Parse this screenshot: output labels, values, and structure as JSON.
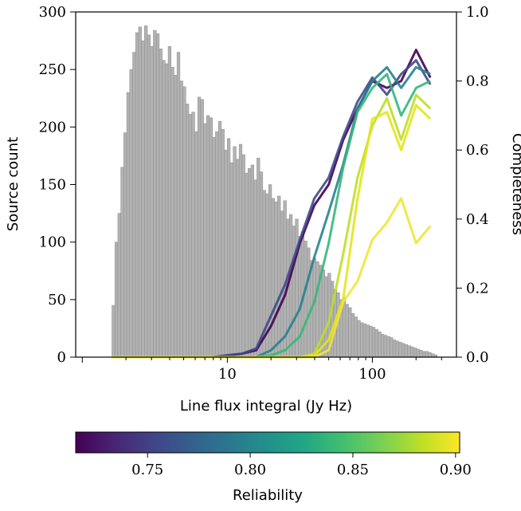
{
  "chart_data": {
    "type": "bar",
    "xlabel": "Line flux integral (Jy Hz)",
    "ylabel": "Source count",
    "y2label": "Completeness",
    "xscale": "log",
    "xlim": [
      0.9,
      380
    ],
    "ylim": [
      0,
      300
    ],
    "y2lim": [
      0,
      1.0
    ],
    "x_ticks": [
      10,
      100
    ],
    "x_tick_labels": [
      "10",
      "100"
    ],
    "y_ticks": [
      0,
      50,
      100,
      150,
      200,
      250,
      300
    ],
    "y_tick_labels": [
      "0",
      "50",
      "100",
      "150",
      "200",
      "250",
      "300"
    ],
    "y2_ticks": [
      0,
      0.2,
      0.4,
      0.6,
      0.8,
      1.0
    ],
    "y2_tick_labels": [
      "0.0",
      "0.2",
      "0.4",
      "0.6",
      "0.8",
      "1.0"
    ],
    "histogram": {
      "color": "#b2b2b2",
      "edge_color": "#8c8c8c",
      "bin_edges_start": 1.6,
      "bin_edges_end": 280,
      "counts": [
        45,
        100,
        125,
        165,
        195,
        230,
        250,
        265,
        282,
        287,
        275,
        288,
        280,
        270,
        284,
        281,
        268,
        258,
        255,
        270,
        252,
        245,
        265,
        240,
        235,
        220,
        211,
        213,
        196,
        226,
        224,
        203,
        210,
        208,
        191,
        196,
        205,
        198,
        180,
        190,
        169,
        183,
        172,
        185,
        176,
        160,
        164,
        167,
        154,
        173,
        161,
        145,
        142,
        150,
        138,
        135,
        140,
        127,
        136,
        120,
        124,
        114,
        120,
        105,
        109,
        101,
        95,
        84,
        86,
        83,
        80,
        76,
        70,
        73,
        66,
        59,
        56,
        50,
        52,
        46,
        43,
        38,
        35,
        32,
        30,
        29,
        28,
        27,
        26,
        24,
        22,
        20,
        19,
        18,
        17,
        15,
        14,
        13,
        12,
        11,
        10,
        9,
        8,
        7,
        6,
        5,
        5,
        4,
        3,
        2
      ]
    },
    "completeness_x": [
      1.6,
      2,
      2.5,
      3.2,
      4,
      5,
      6.3,
      8,
      10,
      12.6,
      15.8,
      20,
      25,
      31.6,
      39.8,
      50,
      63,
      79,
      100,
      126,
      158,
      200,
      251
    ],
    "series": [
      {
        "reliability": 0.72,
        "color": "#440154",
        "values": [
          0,
          0,
          0,
          0,
          0,
          0,
          0,
          0,
          0.005,
          0.01,
          0.02,
          0.09,
          0.18,
          0.33,
          0.44,
          0.5,
          0.63,
          0.72,
          0.8,
          0.78,
          0.8,
          0.89,
          0.81
        ]
      },
      {
        "reliability": 0.74,
        "color": "#3e4a89",
        "values": [
          0,
          0,
          0,
          0,
          0,
          0,
          0,
          0,
          0.005,
          0.01,
          0.025,
          0.12,
          0.21,
          0.34,
          0.46,
          0.52,
          0.64,
          0.74,
          0.81,
          0.76,
          0.82,
          0.86,
          0.79
        ]
      },
      {
        "reliability": 0.78,
        "color": "#26828e",
        "values": [
          0,
          0,
          0,
          0,
          0,
          0,
          0,
          0,
          0,
          0,
          0,
          0.02,
          0.06,
          0.14,
          0.29,
          0.42,
          0.56,
          0.72,
          0.8,
          0.84,
          0.78,
          0.84,
          0.82
        ]
      },
      {
        "reliability": 0.81,
        "color": "#35b779",
        "values": [
          0,
          0,
          0,
          0,
          0,
          0,
          0,
          0,
          0,
          0,
          0,
          0.005,
          0.02,
          0.06,
          0.16,
          0.33,
          0.55,
          0.71,
          0.78,
          0.82,
          0.7,
          0.78,
          0.8
        ]
      },
      {
        "reliability": 0.86,
        "color": "#bddf26",
        "values": [
          0,
          0,
          0,
          0,
          0,
          0,
          0,
          0,
          0,
          0,
          0,
          0,
          0,
          0,
          0.01,
          0.1,
          0.3,
          0.52,
          0.67,
          0.75,
          0.63,
          0.76,
          0.72
        ]
      },
      {
        "reliability": 0.89,
        "color": "#e4e419",
        "values": [
          0,
          0,
          0,
          0,
          0,
          0,
          0,
          0,
          0,
          0,
          0,
          0,
          0,
          0,
          0.005,
          0.05,
          0.17,
          0.46,
          0.69,
          0.71,
          0.6,
          0.73,
          0.69
        ]
      },
      {
        "reliability": 0.9,
        "color": "#f0e535",
        "values": [
          0,
          0,
          0,
          0,
          0,
          0,
          0,
          0,
          0,
          0,
          0,
          0,
          0,
          0,
          0,
          0.02,
          0.16,
          0.22,
          0.34,
          0.39,
          0.46,
          0.33,
          0.38
        ]
      }
    ],
    "colorbar": {
      "label": "Reliability",
      "range": [
        0.715,
        0.902
      ],
      "ticks": [
        0.75,
        0.8,
        0.85,
        0.9
      ],
      "tick_labels": [
        "0.75",
        "0.80",
        "0.85",
        "0.90"
      ],
      "colormap": [
        "#440154",
        "#482475",
        "#414487",
        "#355f8d",
        "#2a788e",
        "#21918c",
        "#22a884",
        "#44bf70",
        "#7ad151",
        "#bddf26",
        "#fde725"
      ]
    }
  }
}
